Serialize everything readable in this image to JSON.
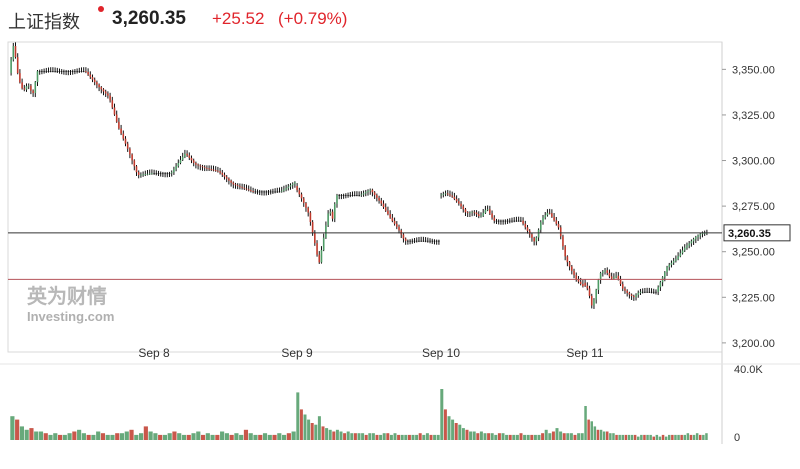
{
  "header": {
    "name": "上证指数",
    "price": "3,260.35",
    "change": "+25.52",
    "change_pct": "(+0.79%)",
    "up_color": "#e0242b",
    "dot_color": "#e0242b"
  },
  "watermark": {
    "line1": "英为财情",
    "line2": "Investing.com"
  },
  "chart_data": {
    "type": "candlestick",
    "ylim": [
      3195,
      3365
    ],
    "yticks": [
      "3,350.00",
      "3,325.00",
      "3,300.00",
      "3,275.00",
      "3,250.00",
      "3,225.00",
      "3,200.00"
    ],
    "ytick_values": [
      3350,
      3325,
      3300,
      3275,
      3250,
      3225,
      3200
    ],
    "xticks": [
      "Sep 8",
      "Sep 9",
      "Sep 10",
      "Sep 11"
    ],
    "last_value": 3260.35,
    "last_label": "3,260.35",
    "prev_close": 3234.83,
    "volume_ticks": [
      "40.0K",
      "0"
    ],
    "volume_max": 40000,
    "sessions": [
      {
        "label": "Sep 8",
        "path": [
          [
            0,
            3348
          ],
          [
            1,
            3364
          ],
          [
            2,
            3345
          ],
          [
            3,
            3338
          ],
          [
            4,
            3342
          ],
          [
            5,
            3336
          ],
          [
            6,
            3349
          ],
          [
            16,
            3349
          ],
          [
            19,
            3340
          ],
          [
            21,
            3335
          ],
          [
            23,
            3318
          ],
          [
            25,
            3306
          ],
          [
            27,
            3292
          ],
          [
            30,
            3293
          ],
          [
            34,
            3293
          ],
          [
            37,
            3304
          ],
          [
            39,
            3298
          ],
          [
            41,
            3296
          ],
          [
            44,
            3294
          ],
          [
            47,
            3287
          ],
          [
            51,
            3283
          ],
          [
            57,
            3283
          ],
          [
            60,
            3288
          ]
        ],
        "volumes": [
          14,
          12,
          8,
          6,
          7,
          5,
          5,
          4,
          3,
          4,
          3,
          3,
          4,
          5,
          6,
          4,
          3,
          3,
          5,
          4,
          3,
          3,
          4,
          4,
          5,
          6,
          3,
          4,
          8,
          5,
          4,
          3,
          3,
          4,
          5,
          4,
          3,
          3,
          4,
          5,
          3,
          4,
          3,
          3,
          5,
          4,
          3,
          4,
          3,
          6,
          4,
          3,
          3,
          4,
          3,
          3,
          4,
          3,
          4,
          5
        ]
      },
      {
        "label": "Sep 9",
        "path": [
          [
            0,
            3286
          ],
          [
            2,
            3279
          ],
          [
            4,
            3271
          ],
          [
            6,
            3253
          ],
          [
            7,
            3243
          ],
          [
            9,
            3264
          ],
          [
            10,
            3274
          ],
          [
            11,
            3268
          ],
          [
            12,
            3281
          ],
          [
            19,
            3281
          ],
          [
            22,
            3284
          ],
          [
            25,
            3277
          ],
          [
            28,
            3268
          ],
          [
            30,
            3263
          ],
          [
            32,
            3256
          ],
          [
            42,
            3256
          ]
        ],
        "volumes": [
          28,
          18,
          15,
          12,
          10,
          9,
          14,
          8,
          7,
          6,
          5,
          6,
          5,
          4,
          5,
          4,
          4,
          4,
          4,
          3,
          4,
          4,
          3,
          3,
          4,
          4,
          3,
          4,
          3,
          3,
          3,
          3,
          3,
          3,
          4,
          3,
          4,
          3,
          3,
          3
        ]
      },
      {
        "label": "Sep 10",
        "path": [
          [
            0,
            3281
          ],
          [
            2,
            3282
          ],
          [
            4,
            3280
          ],
          [
            6,
            3276
          ],
          [
            8,
            3271
          ],
          [
            10,
            3272
          ],
          [
            12,
            3269
          ],
          [
            14,
            3274
          ],
          [
            16,
            3267
          ],
          [
            24,
            3267
          ],
          [
            28,
            3255
          ],
          [
            30,
            3268
          ],
          [
            32,
            3272
          ],
          [
            35,
            3263
          ],
          [
            37,
            3246
          ],
          [
            40,
            3235
          ],
          [
            42,
            3231
          ]
        ],
        "volumes": [
          30,
          18,
          14,
          12,
          10,
          9,
          7,
          6,
          5,
          5,
          4,
          5,
          4,
          4,
          4,
          3,
          4,
          4,
          3,
          3,
          3,
          3,
          4,
          3,
          3,
          3,
          3,
          3,
          4,
          6,
          4,
          5,
          7,
          5,
          4,
          4,
          4,
          3,
          4,
          4
        ]
      },
      {
        "label": "Sep 11",
        "path": [
          [
            0,
            3233
          ],
          [
            2,
            3229
          ],
          [
            3,
            3220
          ],
          [
            4,
            3224
          ],
          [
            6,
            3238
          ],
          [
            8,
            3240
          ],
          [
            10,
            3235
          ],
          [
            12,
            3237
          ],
          [
            14,
            3230
          ],
          [
            16,
            3227
          ],
          [
            18,
            3225
          ],
          [
            20,
            3228
          ],
          [
            26,
            3228
          ],
          [
            30,
            3242
          ],
          [
            33,
            3246
          ],
          [
            36,
            3252
          ],
          [
            38,
            3255
          ],
          [
            40,
            3258
          ],
          [
            42,
            3260
          ],
          [
            44,
            3260.35
          ]
        ],
        "volumes": [
          20,
          12,
          11,
          8,
          6,
          6,
          5,
          5,
          4,
          4,
          3,
          3,
          3,
          3,
          3,
          3,
          3,
          2,
          3,
          3,
          3,
          3,
          2,
          3,
          2,
          3,
          2,
          3,
          3,
          3,
          3,
          3,
          3,
          4,
          3,
          3,
          4,
          3,
          3,
          4
        ]
      }
    ]
  }
}
